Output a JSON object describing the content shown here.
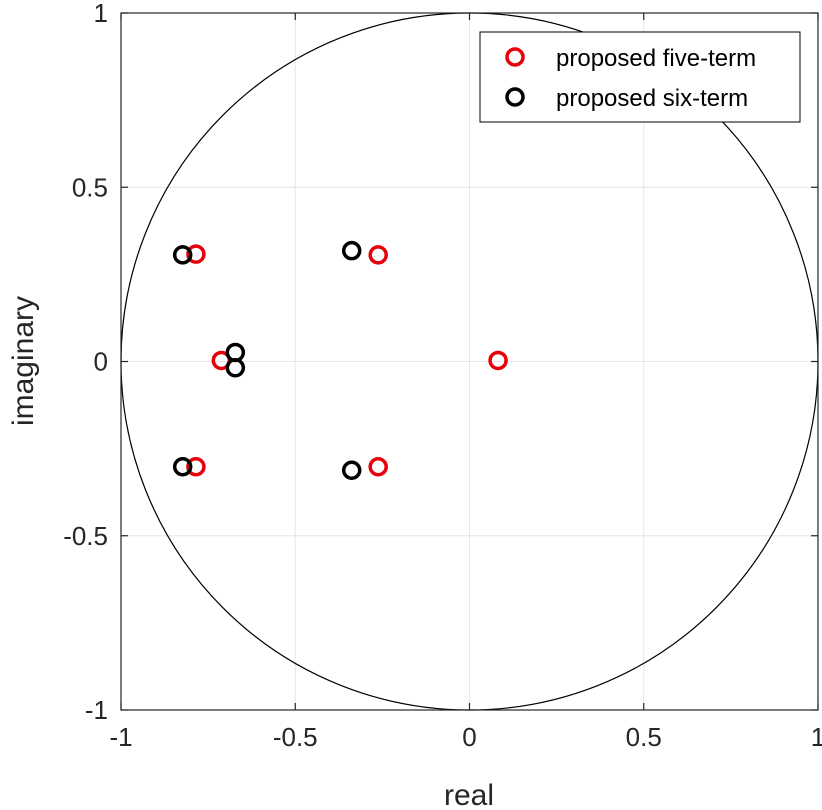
{
  "chart_data": {
    "type": "scatter",
    "title": "",
    "xlabel": "real",
    "ylabel": "imaginary",
    "xlim": [
      -1,
      1
    ],
    "ylim": [
      -1,
      1
    ],
    "xticks": [
      -1,
      -0.5,
      0,
      0.5,
      1
    ],
    "yticks": [
      -1,
      -0.5,
      0,
      0.5,
      1
    ],
    "xtick_labels": [
      "-1",
      "-0.5",
      "0",
      "0.5",
      "1"
    ],
    "ytick_labels": [
      "-1",
      "-0.5",
      "0",
      "0.5",
      "1"
    ],
    "grid": true,
    "unit_circle": true,
    "legend_position": "top-right",
    "series": [
      {
        "name": "proposed five-term",
        "color": "#e8000b",
        "marker": "circle-open",
        "points": [
          {
            "x": -0.785,
            "y": 0.308
          },
          {
            "x": -0.785,
            "y": -0.302
          },
          {
            "x": -0.712,
            "y": 0.003
          },
          {
            "x": -0.262,
            "y": 0.306
          },
          {
            "x": -0.262,
            "y": -0.302
          },
          {
            "x": 0.082,
            "y": 0.003
          }
        ]
      },
      {
        "name": "proposed six-term",
        "color": "#000000",
        "marker": "circle-open",
        "points": [
          {
            "x": -0.823,
            "y": 0.306
          },
          {
            "x": -0.823,
            "y": -0.302
          },
          {
            "x": -0.672,
            "y": 0.026
          },
          {
            "x": -0.672,
            "y": -0.018
          },
          {
            "x": -0.338,
            "y": 0.318
          },
          {
            "x": -0.338,
            "y": -0.312
          }
        ]
      }
    ]
  }
}
